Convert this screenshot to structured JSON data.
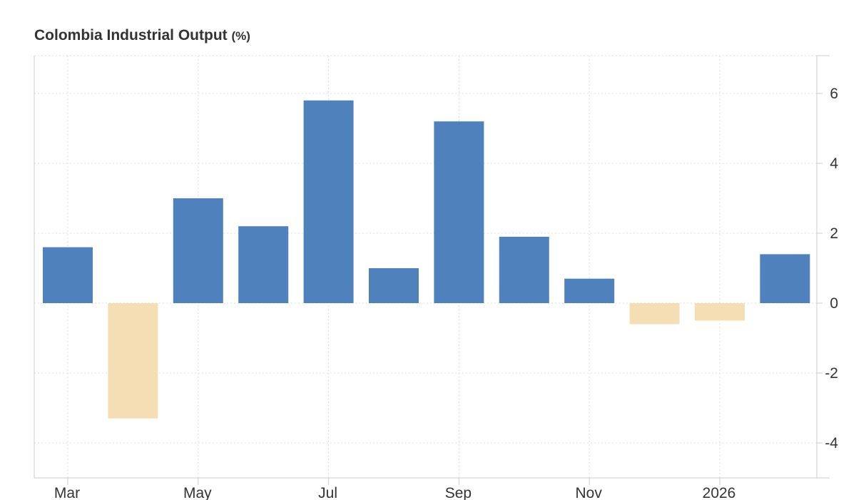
{
  "chart_data": {
    "type": "bar",
    "title": "Colombia Industrial Output",
    "unit": "(%)",
    "xlabel": "",
    "ylabel": "",
    "categories": [
      "2025-03",
      "2025-04",
      "2025-05",
      "2025-06",
      "2025-07",
      "2025-08",
      "2025-09",
      "2025-10",
      "2025-11",
      "2025-12",
      "2026-01",
      "2026-02"
    ],
    "values": [
      1.6,
      -3.3,
      3.0,
      2.2,
      5.8,
      1.0,
      5.2,
      1.9,
      0.7,
      -0.6,
      -0.5,
      1.4
    ],
    "x_tick_labels": [
      "Mar",
      "May",
      "Jul",
      "Sep",
      "Nov",
      "2026"
    ],
    "y_ticks": [
      6,
      4,
      2,
      0,
      -2,
      -4
    ],
    "ylim": [
      -5,
      7
    ],
    "y_axis_side": "right",
    "grid": true,
    "colors": {
      "positive": "#4f81bd",
      "negative": "#f5deb3",
      "grid": "#dddddd",
      "axis": "#cccccc",
      "text": "#333333"
    }
  }
}
